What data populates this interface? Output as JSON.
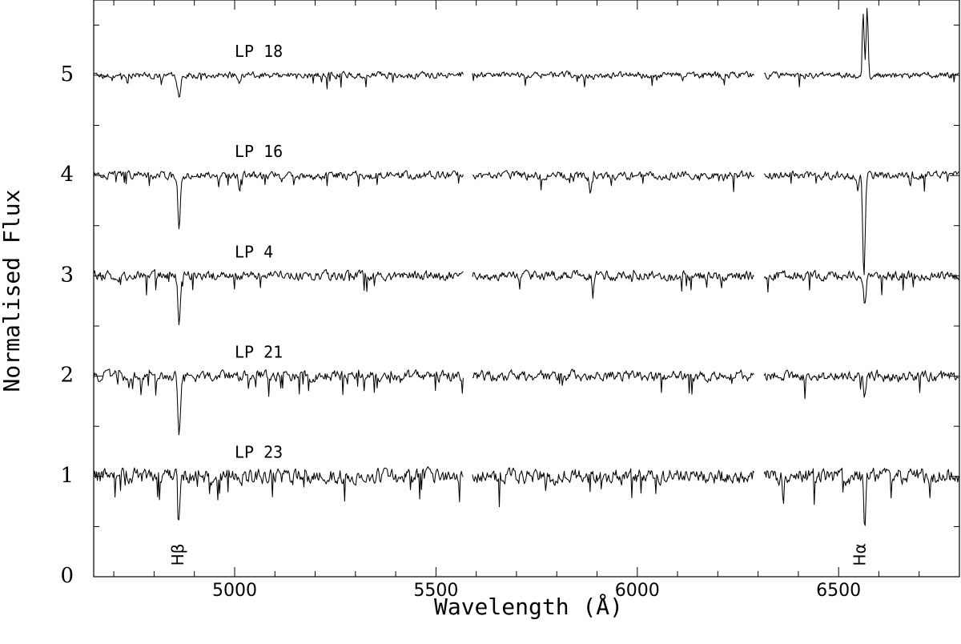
{
  "chart_data": {
    "type": "line",
    "xlabel": "Wavelength (Å)",
    "ylabel": "Normalised Flux",
    "xlim": [
      4650,
      6800
    ],
    "ylim": [
      0,
      5.75
    ],
    "xticks": [
      5000,
      5500,
      6000,
      6500
    ],
    "yticks": [
      0,
      1,
      2,
      3,
      4,
      5
    ],
    "grid": false,
    "legend": "none",
    "line_color": "#000000",
    "gap_regions": [
      [
        5570,
        5590
      ],
      [
        6290,
        6315
      ]
    ],
    "series": [
      {
        "name": "LP 18",
        "offset": 5,
        "noise": 0.028,
        "seed": 18,
        "features": [
          {
            "center": 4862,
            "depth": 0.2,
            "width": 4
          },
          {
            "center": 5012,
            "depth": 0.06,
            "width": 2.5
          },
          {
            "center": 5891,
            "depth": 0.05,
            "width": 3
          },
          {
            "center": 6561,
            "depth": -0.6,
            "width": 2.5
          },
          {
            "center": 6571,
            "depth": -0.65,
            "width": 2.5
          }
        ]
      },
      {
        "name": "LP 16",
        "offset": 4,
        "noise": 0.035,
        "seed": 16,
        "features": [
          {
            "center": 4862,
            "depth": 0.52,
            "width": 3
          },
          {
            "center": 4960,
            "depth": 0.12,
            "width": 2
          },
          {
            "center": 5012,
            "depth": 0.18,
            "width": 2
          },
          {
            "center": 5883,
            "depth": 0.18,
            "width": 2.5
          },
          {
            "center": 6563,
            "depth": 0.97,
            "width": 3
          },
          {
            "center": 6678,
            "depth": 0.15,
            "width": 2
          }
        ]
      },
      {
        "name": "LP 4",
        "offset": 3,
        "noise": 0.04,
        "seed": 4,
        "features": [
          {
            "center": 4862,
            "depth": 0.45,
            "width": 3
          },
          {
            "center": 5890,
            "depth": 0.12,
            "width": 2.5
          },
          {
            "center": 6565,
            "depth": 0.3,
            "width": 3
          }
        ]
      },
      {
        "name": "LP 21",
        "offset": 2,
        "noise": 0.045,
        "seed": 21,
        "features": [
          {
            "center": 4862,
            "depth": 0.55,
            "width": 3.5
          },
          {
            "center": 6363,
            "depth": 0.08,
            "width": 2
          },
          {
            "center": 6565,
            "depth": 0.22,
            "width": 3
          }
        ]
      },
      {
        "name": "LP 23",
        "offset": 1,
        "noise": 0.065,
        "seed": 23,
        "features": [
          {
            "center": 4862,
            "depth": 0.45,
            "width": 2.5
          },
          {
            "center": 6363,
            "depth": 0.3,
            "width": 1.5
          },
          {
            "center": 6565,
            "depth": 0.6,
            "width": 2.5
          }
        ]
      }
    ],
    "annotations": [
      {
        "text": "Hβ",
        "x": 4862,
        "y": 0.22
      },
      {
        "text": "Hα",
        "x": 6555,
        "y": 0.22
      }
    ]
  }
}
